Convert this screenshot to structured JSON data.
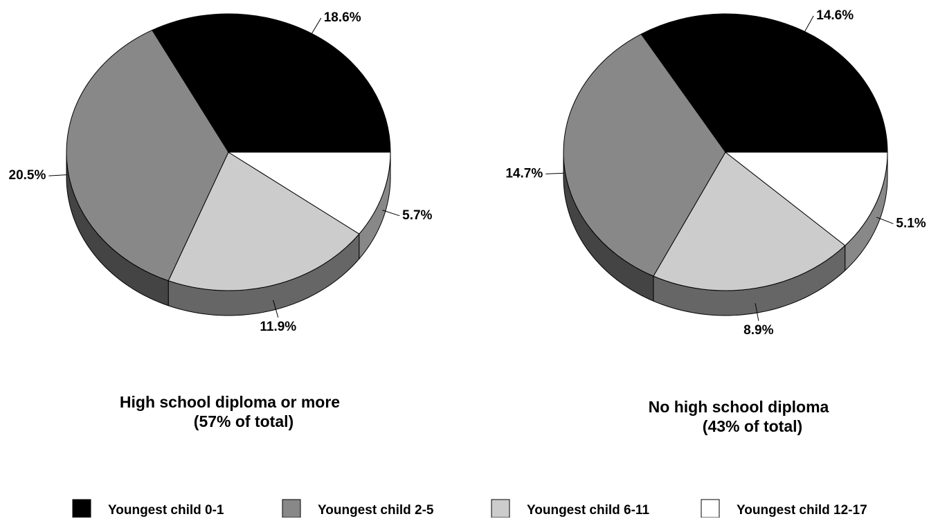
{
  "chart_data": [
    {
      "type": "pie",
      "title": "High school diploma or more",
      "subtitle": "(57% of total)",
      "values": [
        18.6,
        20.5,
        11.9,
        5.7
      ],
      "value_labels": [
        "18.6%",
        "20.5%",
        "11.9%",
        "5.7%"
      ]
    },
    {
      "type": "pie",
      "title": "No high school diploma",
      "subtitle": "(43% of total)",
      "values": [
        14.6,
        14.7,
        8.9,
        5.1
      ],
      "value_labels": [
        "14.6%",
        "14.7%",
        "8.9%",
        "5.1%"
      ]
    }
  ],
  "legend": {
    "categories": [
      "Youngest child 0-1",
      "Youngest child 2-5",
      "Youngest child 6-11",
      "Youngest child 12-17"
    ],
    "colors": [
      "#000000",
      "#888888",
      "#cccccc",
      "#ffffff"
    ]
  }
}
